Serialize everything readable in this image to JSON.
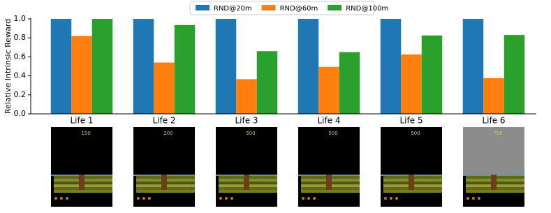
{
  "chart_data": {
    "type": "bar",
    "ylabel": "Relative Intrinsic Reward",
    "categories": [
      "Life 1",
      "Life 2",
      "Life 3",
      "Life 4",
      "Life 5",
      "Life 6"
    ],
    "series": [
      {
        "name": "RND@20m",
        "color": "#1f77b4",
        "values": [
          1.0,
          1.0,
          1.0,
          1.0,
          1.0,
          1.0
        ]
      },
      {
        "name": "RND@60m",
        "color": "#ff7f0e",
        "values": [
          0.82,
          0.54,
          0.365,
          0.495,
          0.625,
          0.375
        ]
      },
      {
        "name": "RND@100m",
        "color": "#2ca02c",
        "values": [
          1.0,
          0.935,
          0.66,
          0.65,
          0.825,
          0.83
        ]
      }
    ],
    "ylim": [
      0,
      1.0
    ],
    "yticks": [
      {
        "value": 0,
        "label": "0.0"
      },
      {
        "value": 0.2,
        "label": "0.2"
      },
      {
        "value": 0.4,
        "label": "0.4"
      },
      {
        "value": 0.6,
        "label": "0.6"
      },
      {
        "value": 0.8,
        "label": "0.8"
      },
      {
        "value": 1.0,
        "label": "1.0"
      }
    ],
    "legend": "top"
  },
  "screenshots": {
    "scores": [
      "150",
      "200",
      "500",
      "500",
      "500",
      "750"
    ]
  }
}
